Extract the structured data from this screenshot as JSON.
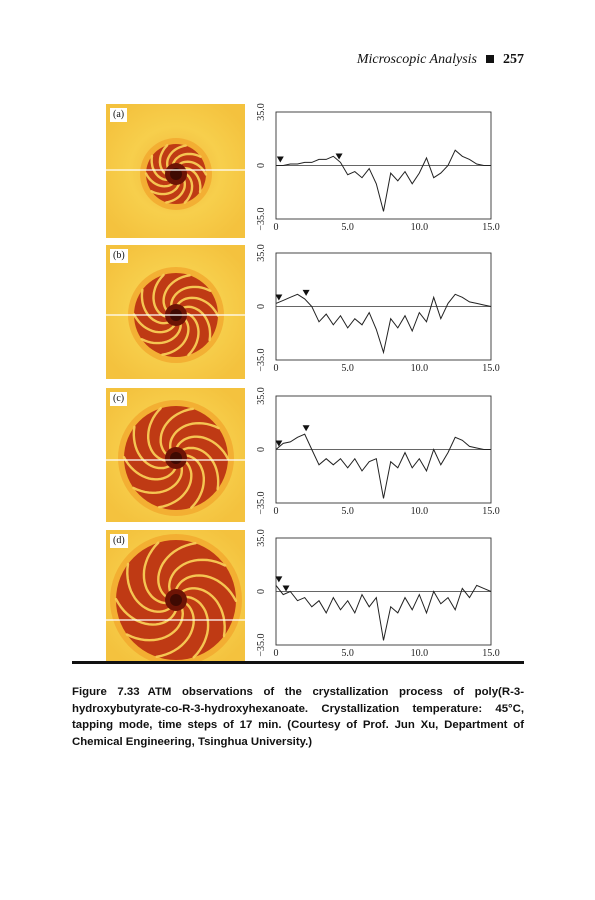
{
  "running_header": {
    "section": "Microscopic Analysis",
    "page_number": "257"
  },
  "figure": {
    "label": "Figure 7.33",
    "caption": "ATM observations of the crystallization process of poly(R-3-hydroxybutyrate-co-R-3-hydroxyhexanoate. Crystallization temperature: 45°C, tapping mode, time steps of 17 min. (Courtesy of Prof. Jun Xu, Department of Chemical Engineering, Tsinghua University.)",
    "panels": [
      {
        "tag": "(a)"
      },
      {
        "tag": "(b)"
      },
      {
        "tag": "(c)"
      },
      {
        "tag": "(d)"
      }
    ]
  },
  "chart_data": [
    {
      "type": "line",
      "panel": "(a)",
      "x_ticks": [
        "0",
        "5.0",
        "10.0",
        "15.0"
      ],
      "y_ticks": [
        "−35.0",
        "0",
        "35.0"
      ],
      "xlim": [
        0,
        15
      ],
      "ylim": [
        -35,
        35
      ],
      "markers_x": [
        0.3,
        4.4
      ],
      "x": [
        0,
        0.5,
        1,
        1.5,
        2,
        2.5,
        3,
        3.5,
        4,
        4.5,
        5,
        5.5,
        6,
        6.5,
        7,
        7.5,
        8,
        8.5,
        9,
        9.5,
        10,
        10.5,
        11,
        11.5,
        12,
        12.5,
        13,
        13.5,
        14,
        14.5,
        15
      ],
      "y": [
        0,
        0,
        1,
        1,
        2,
        2,
        4,
        4,
        6,
        2,
        -6,
        -4,
        -8,
        -2,
        -12,
        -30,
        -5,
        -10,
        -4,
        -12,
        -5,
        5,
        -8,
        -5,
        0,
        10,
        6,
        4,
        1,
        0,
        0
      ]
    },
    {
      "type": "line",
      "panel": "(b)",
      "x_ticks": [
        "0",
        "5.0",
        "10.0",
        "15.0"
      ],
      "y_ticks": [
        "−35.0",
        "0",
        "35.0"
      ],
      "xlim": [
        0,
        15
      ],
      "ylim": [
        -35,
        35
      ],
      "markers_x": [
        0.2,
        2.1
      ],
      "x": [
        0,
        0.5,
        1,
        1.5,
        2,
        2.5,
        3,
        3.5,
        4,
        4.5,
        5,
        5.5,
        6,
        6.5,
        7,
        7.5,
        8,
        8.5,
        9,
        9.5,
        10,
        10.5,
        11,
        11.5,
        12,
        12.5,
        13,
        13.5,
        14,
        14.5,
        15
      ],
      "y": [
        2,
        4,
        6,
        8,
        5,
        0,
        -10,
        -5,
        -12,
        -6,
        -14,
        -8,
        -12,
        -4,
        -15,
        -30,
        -8,
        -14,
        -6,
        -16,
        -4,
        -10,
        6,
        -8,
        2,
        8,
        6,
        3,
        2,
        1,
        0
      ]
    },
    {
      "type": "line",
      "panel": "(c)",
      "x_ticks": [
        "0",
        "5.0",
        "10.0",
        "15.0"
      ],
      "y_ticks": [
        "−35.0",
        "0",
        "35.0"
      ],
      "xlim": [
        0,
        15
      ],
      "ylim": [
        -35,
        35
      ],
      "markers_x": [
        0.2,
        2.1
      ],
      "x": [
        0,
        0.5,
        1,
        1.5,
        2,
        2.5,
        3,
        3.5,
        4,
        4.5,
        5,
        5.5,
        6,
        6.5,
        7,
        7.5,
        8,
        8.5,
        9,
        9.5,
        10,
        10.5,
        11,
        11.5,
        12,
        12.5,
        13,
        13.5,
        14,
        14.5,
        15
      ],
      "y": [
        0,
        4,
        5,
        8,
        10,
        0,
        -10,
        -6,
        -10,
        -6,
        -12,
        -6,
        -14,
        -8,
        -6,
        -32,
        -8,
        -12,
        -2,
        -12,
        -6,
        -14,
        0,
        -10,
        -2,
        8,
        6,
        2,
        1,
        0,
        0
      ]
    },
    {
      "type": "line",
      "panel": "(d)",
      "x_ticks": [
        "0",
        "5.0",
        "10.0",
        "15.0"
      ],
      "y_ticks": [
        "−35.0",
        "0",
        "35.0"
      ],
      "xlim": [
        0,
        15
      ],
      "ylim": [
        -35,
        35
      ],
      "markers_x": [
        0.2,
        0.7
      ],
      "x": [
        0,
        0.5,
        1,
        1.5,
        2,
        2.5,
        3,
        3.5,
        4,
        4.5,
        5,
        5.5,
        6,
        6.5,
        7,
        7.5,
        8,
        8.5,
        9,
        9.5,
        10,
        10.5,
        11,
        11.5,
        12,
        12.5,
        13,
        13.5,
        14,
        14.5,
        15
      ],
      "y": [
        4,
        -2,
        0,
        -6,
        -4,
        -10,
        -6,
        -14,
        -4,
        -12,
        -6,
        -14,
        -2,
        -10,
        -4,
        -32,
        -10,
        -14,
        -4,
        -12,
        -2,
        -14,
        0,
        -8,
        -4,
        -12,
        2,
        -4,
        4,
        2,
        0
      ]
    }
  ]
}
